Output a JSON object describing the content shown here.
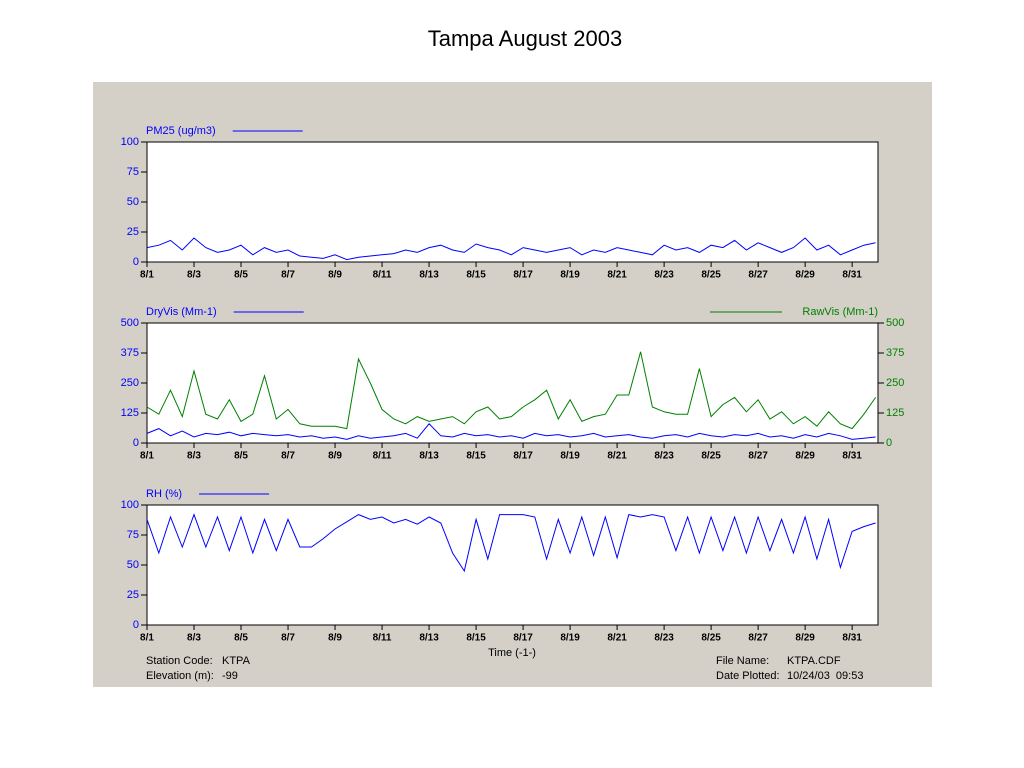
{
  "title": "Tampa August 2003",
  "footer": {
    "station_label": "Station Code:",
    "station": "KTPA",
    "elevation_label": "Elevation (m):",
    "elevation": "-99",
    "file_label": "File Name:",
    "file": "KTPA.CDF",
    "date_label": "Date Plotted:",
    "date": "10/24/03  09:53"
  },
  "chart_data": [
    {
      "type": "line",
      "xlim": [
        0,
        31.1
      ],
      "xticks": [
        {
          "value": 0,
          "label": "8/1"
        },
        {
          "value": 2,
          "label": "8/3"
        },
        {
          "value": 4,
          "label": "8/5"
        },
        {
          "value": 6,
          "label": "8/7"
        },
        {
          "value": 8,
          "label": "8/9"
        },
        {
          "value": 10,
          "label": "8/11"
        },
        {
          "value": 12,
          "label": "8/13"
        },
        {
          "value": 14,
          "label": "8/15"
        },
        {
          "value": 16,
          "label": "8/17"
        },
        {
          "value": 18,
          "label": "8/19"
        },
        {
          "value": 20,
          "label": "8/21"
        },
        {
          "value": 22,
          "label": "8/23"
        },
        {
          "value": 24,
          "label": "8/25"
        },
        {
          "value": 26,
          "label": "8/27"
        },
        {
          "value": 28,
          "label": "8/29"
        },
        {
          "value": 30,
          "label": "8/31"
        }
      ],
      "ylim": [
        0,
        100
      ],
      "yticks": [
        0,
        25,
        50,
        75,
        100
      ],
      "x": [
        0,
        0.5,
        1,
        1.5,
        2,
        2.5,
        3,
        3.5,
        4,
        4.5,
        5,
        5.5,
        6,
        6.5,
        7,
        7.5,
        8,
        8.5,
        9,
        9.5,
        10,
        10.5,
        11,
        11.5,
        12,
        12.5,
        13,
        13.5,
        14,
        14.5,
        15,
        15.5,
        16,
        16.5,
        17,
        17.5,
        18,
        18.5,
        19,
        19.5,
        20,
        20.5,
        21,
        21.5,
        22,
        22.5,
        23,
        23.5,
        24,
        24.5,
        25,
        25.5,
        26,
        26.5,
        27,
        27.5,
        28,
        28.5,
        29,
        29.5,
        30,
        30.5,
        31
      ],
      "series": [
        {
          "name": "PM25 (ug/m3)",
          "color": "#0000ff",
          "values": [
            12,
            14,
            18,
            10,
            20,
            12,
            8,
            10,
            14,
            6,
            12,
            8,
            10,
            5,
            4,
            3,
            6,
            2,
            4,
            5,
            6,
            7,
            10,
            8,
            12,
            14,
            10,
            8,
            15,
            12,
            10,
            6,
            12,
            10,
            8,
            10,
            12,
            6,
            10,
            8,
            12,
            10,
            8,
            6,
            14,
            10,
            12,
            8,
            14,
            12,
            18,
            10,
            16,
            12,
            8,
            12,
            20,
            10,
            14,
            6,
            10,
            14,
            16
          ]
        }
      ]
    },
    {
      "type": "line",
      "xlim": [
        0,
        31.1
      ],
      "xticks": [
        {
          "value": 0,
          "label": "8/1"
        },
        {
          "value": 2,
          "label": "8/3"
        },
        {
          "value": 4,
          "label": "8/5"
        },
        {
          "value": 6,
          "label": "8/7"
        },
        {
          "value": 8,
          "label": "8/9"
        },
        {
          "value": 10,
          "label": "8/11"
        },
        {
          "value": 12,
          "label": "8/13"
        },
        {
          "value": 14,
          "label": "8/15"
        },
        {
          "value": 16,
          "label": "8/17"
        },
        {
          "value": 18,
          "label": "8/19"
        },
        {
          "value": 20,
          "label": "8/21"
        },
        {
          "value": 22,
          "label": "8/23"
        },
        {
          "value": 24,
          "label": "8/25"
        },
        {
          "value": 26,
          "label": "8/27"
        },
        {
          "value": 28,
          "label": "8/29"
        },
        {
          "value": 30,
          "label": "8/31"
        }
      ],
      "ylim": [
        0,
        500
      ],
      "yticks": [
        0,
        125,
        250,
        375,
        500
      ],
      "y2lim": [
        0,
        500
      ],
      "y2ticks": [
        0,
        125,
        250,
        375,
        500
      ],
      "x": [
        0,
        0.5,
        1,
        1.5,
        2,
        2.5,
        3,
        3.5,
        4,
        4.5,
        5,
        5.5,
        6,
        6.5,
        7,
        7.5,
        8,
        8.5,
        9,
        9.5,
        10,
        10.5,
        11,
        11.5,
        12,
        12.5,
        13,
        13.5,
        14,
        14.5,
        15,
        15.5,
        16,
        16.5,
        17,
        17.5,
        18,
        18.5,
        19,
        19.5,
        20,
        20.5,
        21,
        21.5,
        22,
        22.5,
        23,
        23.5,
        24,
        24.5,
        25,
        25.5,
        26,
        26.5,
        27,
        27.5,
        28,
        28.5,
        29,
        29.5,
        30,
        30.5,
        31
      ],
      "series": [
        {
          "name": "DryVis (Mm-1)",
          "color": "#0000ff",
          "values": [
            40,
            60,
            30,
            50,
            25,
            40,
            35,
            45,
            30,
            40,
            35,
            30,
            35,
            25,
            30,
            20,
            25,
            15,
            30,
            20,
            25,
            30,
            40,
            20,
            80,
            30,
            25,
            40,
            30,
            35,
            25,
            30,
            20,
            40,
            30,
            35,
            25,
            30,
            40,
            25,
            30,
            35,
            25,
            20,
            30,
            35,
            25,
            40,
            30,
            25,
            35,
            30,
            40,
            25,
            30,
            20,
            35,
            25,
            40,
            30,
            15,
            20,
            25
          ]
        },
        {
          "name": "RawVis (Mm-1)",
          "color": "#008000",
          "axis": "y2",
          "values": [
            150,
            120,
            220,
            110,
            300,
            120,
            100,
            180,
            90,
            120,
            280,
            100,
            140,
            80,
            70,
            70,
            70,
            60,
            350,
            250,
            140,
            100,
            80,
            110,
            90,
            100,
            110,
            80,
            130,
            150,
            100,
            110,
            150,
            180,
            220,
            100,
            180,
            90,
            110,
            120,
            200,
            200,
            380,
            150,
            130,
            120,
            120,
            310,
            110,
            160,
            190,
            130,
            180,
            100,
            130,
            80,
            110,
            70,
            130,
            80,
            60,
            120,
            190
          ]
        }
      ]
    },
    {
      "type": "line",
      "xlim": [
        0,
        31.1
      ],
      "xlabel": "Time (-1-)",
      "xticks": [
        {
          "value": 0,
          "label": "8/1"
        },
        {
          "value": 2,
          "label": "8/3"
        },
        {
          "value": 4,
          "label": "8/5"
        },
        {
          "value": 6,
          "label": "8/7"
        },
        {
          "value": 8,
          "label": "8/9"
        },
        {
          "value": 10,
          "label": "8/11"
        },
        {
          "value": 12,
          "label": "8/13"
        },
        {
          "value": 14,
          "label": "8/15"
        },
        {
          "value": 16,
          "label": "8/17"
        },
        {
          "value": 18,
          "label": "8/19"
        },
        {
          "value": 20,
          "label": "8/21"
        },
        {
          "value": 22,
          "label": "8/23"
        },
        {
          "value": 24,
          "label": "8/25"
        },
        {
          "value": 26,
          "label": "8/27"
        },
        {
          "value": 28,
          "label": "8/29"
        },
        {
          "value": 30,
          "label": "8/31"
        }
      ],
      "ylim": [
        0,
        100
      ],
      "yticks": [
        0,
        25,
        50,
        75,
        100
      ],
      "x": [
        0,
        0.5,
        1,
        1.5,
        2,
        2.5,
        3,
        3.5,
        4,
        4.5,
        5,
        5.5,
        6,
        6.5,
        7,
        7.5,
        8,
        8.5,
        9,
        9.5,
        10,
        10.5,
        11,
        11.5,
        12,
        12.5,
        13,
        13.5,
        14,
        14.5,
        15,
        15.5,
        16,
        16.5,
        17,
        17.5,
        18,
        18.5,
        19,
        19.5,
        20,
        20.5,
        21,
        21.5,
        22,
        22.5,
        23,
        23.5,
        24,
        24.5,
        25,
        25.5,
        26,
        26.5,
        27,
        27.5,
        28,
        28.5,
        29,
        29.5,
        30,
        30.5,
        31
      ],
      "series": [
        {
          "name": "RH (%)",
          "color": "#0000ff",
          "values": [
            88,
            60,
            90,
            65,
            92,
            65,
            90,
            62,
            90,
            60,
            88,
            62,
            88,
            65,
            65,
            72,
            80,
            86,
            92,
            88,
            90,
            85,
            88,
            84,
            90,
            85,
            60,
            45,
            88,
            55,
            92,
            92,
            92,
            90,
            55,
            88,
            60,
            90,
            58,
            90,
            56,
            92,
            90,
            92,
            90,
            62,
            90,
            60,
            90,
            62,
            90,
            60,
            90,
            62,
            88,
            60,
            90,
            55,
            88,
            48,
            78,
            82,
            85
          ]
        }
      ]
    }
  ]
}
